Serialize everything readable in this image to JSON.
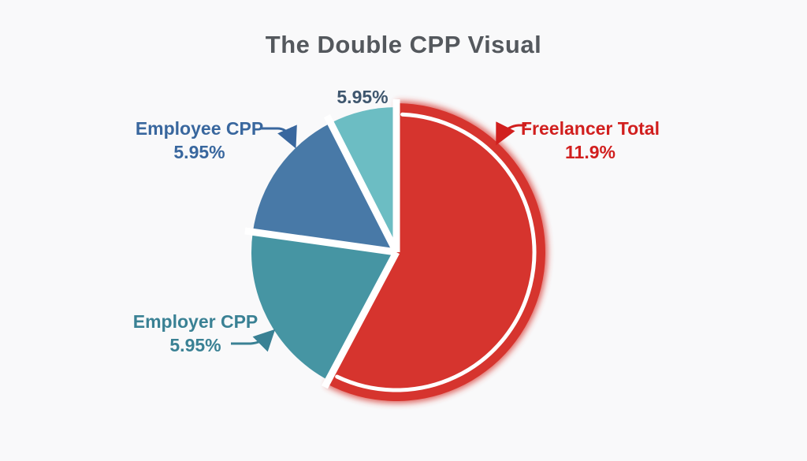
{
  "title": "The Double CPP Visual",
  "chart_data": {
    "type": "pie",
    "title": "The Double CPP Visual",
    "legend_position": "none",
    "labels_style": "external-callouts-with-arrows",
    "slices": [
      {
        "id": "freelancer-total",
        "label": "Freelancer Total",
        "percent": "11.9%",
        "value": 11.9,
        "color": "#d6342e",
        "sweep_deg": 208,
        "emphasis": true
      },
      {
        "id": "employer-cpp",
        "label": "Employer CPP",
        "percent": "5.95%",
        "value": 5.95,
        "color": "#4695a3",
        "sweep_deg": 70
      },
      {
        "id": "employee-cpp",
        "label": "Employee CPP",
        "percent": "5.95%",
        "value": 5.95,
        "color": "#4879a7",
        "sweep_deg": 55
      },
      {
        "id": "top-slice",
        "label": "",
        "percent": "5.95%",
        "value": 5.95,
        "color": "#6cbdc3",
        "sweep_deg": 27
      }
    ]
  },
  "callouts": {
    "top": {
      "percent": "5.95%",
      "color": "#3e566e"
    },
    "employee": {
      "label": "Employee CPP",
      "percent": "5.95%",
      "color": "#39679e"
    },
    "freelancer": {
      "label": "Freelancer Total",
      "percent": "11.9%",
      "color": "#d11f1e"
    },
    "employer": {
      "label": "Employer CPP",
      "percent": "5.95%",
      "color": "#3a8194"
    }
  },
  "colors": {
    "background": "#f9f9fa",
    "title_text": "#54585d",
    "slice_separator": "#ffffff",
    "emphasis_inner_ring": "#ffffff"
  }
}
